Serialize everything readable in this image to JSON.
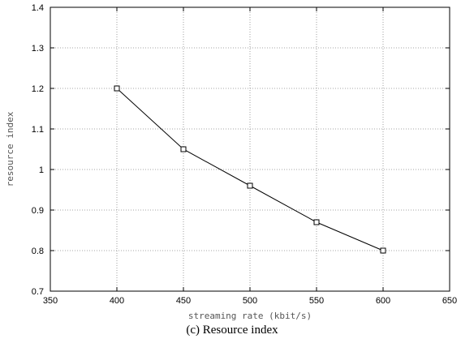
{
  "chart_data": {
    "type": "line",
    "title": "",
    "caption": "(c) Resource index",
    "xlabel": "streaming rate (kbit/s)",
    "ylabel": "resource index",
    "xlim": [
      350,
      650
    ],
    "ylim": [
      0.7,
      1.4
    ],
    "x_ticks": [
      "350",
      "400",
      "450",
      "500",
      "550",
      "600",
      "650"
    ],
    "y_ticks": [
      "0.7",
      "0.8",
      "0.9",
      "1",
      "1.1",
      "1.2",
      "1.3",
      "1.4"
    ],
    "grid": true,
    "series": [
      {
        "x": [
          400,
          450,
          500,
          550,
          600
        ],
        "values": [
          1.2,
          1.05,
          0.96,
          0.87,
          0.8
        ],
        "color": "#000000",
        "marker": "square"
      }
    ]
  }
}
